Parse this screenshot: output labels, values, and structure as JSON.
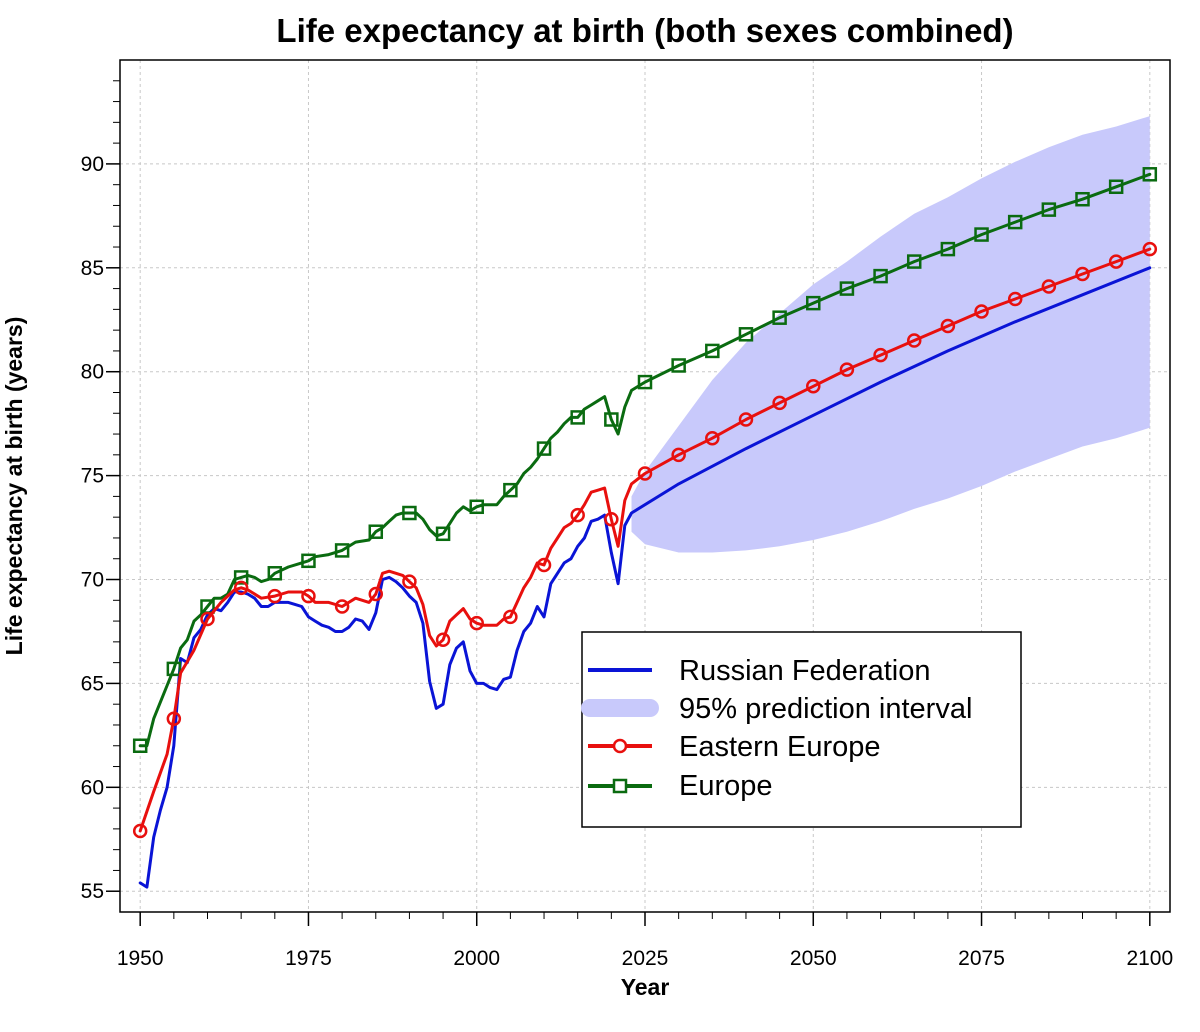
{
  "chart_data": {
    "type": "line",
    "title": "Life expectancy at birth (both sexes combined)",
    "xlabel": "Year",
    "ylabel": "Life expectancy at birth (years)",
    "xlim": [
      1947,
      2103
    ],
    "ylim": [
      54,
      95
    ],
    "x_ticks": [
      1950,
      1975,
      2000,
      2025,
      2050,
      2075,
      2100
    ],
    "y_ticks": [
      55,
      60,
      65,
      70,
      75,
      80,
      85,
      90
    ],
    "x_tick_labels": [
      "1950",
      "1975",
      "2000",
      "2025",
      "2050",
      "2075",
      "2100"
    ],
    "y_tick_labels": [
      "55",
      "60",
      "65",
      "70",
      "75",
      "80",
      "85",
      "90"
    ],
    "grid": true,
    "legend_position": "bottom-right",
    "legend": {
      "russia": "Russian Federation",
      "interval": "95% prediction interval",
      "eastern": "Eastern Europe",
      "europe": "Europe"
    },
    "colors": {
      "russia": "#0a14d6",
      "interval": "#c8c9fb",
      "eastern": "#e8100e",
      "europe": "#0a6b10"
    },
    "series": [
      {
        "key": "russia",
        "name": "Russian Federation",
        "marker": "none",
        "x": [
          1950,
          1951,
          1952,
          1953,
          1954,
          1955,
          1956,
          1957,
          1958,
          1959,
          1960,
          1961,
          1962,
          1963,
          1964,
          1965,
          1966,
          1967,
          1968,
          1969,
          1970,
          1971,
          1972,
          1973,
          1974,
          1975,
          1976,
          1977,
          1978,
          1979,
          1980,
          1981,
          1982,
          1983,
          1984,
          1985,
          1986,
          1987,
          1988,
          1989,
          1990,
          1991,
          1992,
          1993,
          1994,
          1995,
          1996,
          1997,
          1998,
          1999,
          2000,
          2001,
          2002,
          2003,
          2004,
          2005,
          2006,
          2007,
          2008,
          2009,
          2010,
          2011,
          2012,
          2013,
          2014,
          2015,
          2016,
          2017,
          2018,
          2019,
          2020,
          2021,
          2022,
          2023,
          2030,
          2040,
          2050,
          2060,
          2070,
          2080,
          2090,
          2100
        ],
        "y": [
          55.4,
          55.2,
          57.6,
          58.9,
          60.0,
          62.0,
          66.2,
          66.0,
          67.2,
          67.6,
          68.3,
          68.6,
          68.5,
          68.9,
          69.4,
          69.4,
          69.3,
          69.1,
          68.7,
          68.7,
          68.9,
          68.9,
          68.9,
          68.8,
          68.7,
          68.2,
          68.0,
          67.8,
          67.7,
          67.5,
          67.5,
          67.7,
          68.1,
          68.0,
          67.6,
          68.4,
          70.0,
          70.1,
          69.9,
          69.6,
          69.2,
          68.9,
          67.9,
          65.1,
          63.8,
          64.0,
          65.9,
          66.7,
          67.0,
          65.6,
          65.0,
          65.0,
          64.8,
          64.7,
          65.2,
          65.3,
          66.6,
          67.5,
          67.9,
          68.7,
          68.2,
          69.8,
          70.3,
          70.8,
          71.0,
          71.6,
          72.0,
          72.8,
          72.9,
          73.1,
          71.3,
          69.8,
          72.6,
          73.2,
          74.6,
          76.3,
          77.9,
          79.5,
          81.0,
          82.4,
          83.7,
          85.0
        ]
      },
      {
        "key": "eastern",
        "name": "Eastern Europe",
        "marker": "circle",
        "x": [
          1950,
          1952,
          1954,
          1955,
          1956,
          1958,
          1960,
          1962,
          1964,
          1965,
          1966,
          1968,
          1970,
          1972,
          1974,
          1975,
          1976,
          1978,
          1980,
          1982,
          1984,
          1985,
          1986,
          1987,
          1988,
          1989,
          1990,
          1991,
          1992,
          1993,
          1994,
          1995,
          1996,
          1997,
          1998,
          1999,
          2000,
          2001,
          2002,
          2003,
          2004,
          2005,
          2006,
          2007,
          2008,
          2009,
          2010,
          2011,
          2012,
          2013,
          2014,
          2015,
          2016,
          2017,
          2018,
          2019,
          2020,
          2021,
          2022,
          2023,
          2025,
          2030,
          2035,
          2040,
          2045,
          2050,
          2055,
          2060,
          2065,
          2070,
          2075,
          2080,
          2085,
          2090,
          2095,
          2100
        ],
        "y": [
          57.9,
          59.8,
          61.6,
          63.3,
          65.5,
          66.6,
          68.1,
          68.9,
          69.5,
          69.6,
          69.5,
          69.1,
          69.2,
          69.4,
          69.4,
          69.2,
          68.9,
          68.9,
          68.7,
          69.1,
          68.9,
          69.3,
          70.3,
          70.4,
          70.3,
          70.2,
          69.9,
          69.6,
          68.8,
          67.3,
          66.8,
          67.1,
          68.0,
          68.3,
          68.6,
          68.1,
          67.9,
          67.8,
          67.8,
          67.8,
          68.1,
          68.2,
          68.9,
          69.6,
          70.1,
          70.8,
          70.7,
          71.5,
          72.0,
          72.5,
          72.7,
          73.1,
          73.6,
          74.2,
          74.3,
          74.4,
          72.9,
          71.6,
          73.8,
          74.6,
          75.1,
          76.0,
          76.8,
          77.7,
          78.5,
          79.3,
          80.1,
          80.8,
          81.5,
          82.2,
          82.9,
          83.5,
          84.1,
          84.7,
          85.3,
          85.9
        ]
      },
      {
        "key": "europe",
        "name": "Europe",
        "marker": "square",
        "x": [
          1950,
          1951,
          1952,
          1953,
          1954,
          1955,
          1956,
          1957,
          1958,
          1959,
          1960,
          1961,
          1962,
          1963,
          1964,
          1965,
          1966,
          1967,
          1968,
          1969,
          1970,
          1972,
          1974,
          1975,
          1976,
          1978,
          1980,
          1982,
          1984,
          1985,
          1986,
          1987,
          1988,
          1989,
          1990,
          1991,
          1992,
          1993,
          1994,
          1995,
          1996,
          1997,
          1998,
          1999,
          2000,
          2001,
          2002,
          2003,
          2004,
          2005,
          2006,
          2007,
          2008,
          2009,
          2010,
          2011,
          2012,
          2013,
          2014,
          2015,
          2016,
          2017,
          2018,
          2019,
          2020,
          2021,
          2022,
          2023,
          2025,
          2030,
          2035,
          2040,
          2045,
          2050,
          2055,
          2060,
          2065,
          2070,
          2075,
          2080,
          2085,
          2090,
          2095,
          2100
        ],
        "y": [
          62.0,
          62.0,
          63.3,
          64.1,
          64.9,
          65.7,
          66.7,
          67.1,
          68.0,
          68.3,
          68.7,
          69.1,
          69.1,
          69.3,
          70.0,
          70.1,
          70.2,
          70.1,
          69.9,
          70.0,
          70.3,
          70.6,
          70.8,
          70.9,
          71.1,
          71.2,
          71.4,
          71.8,
          71.9,
          72.3,
          72.5,
          72.8,
          73.1,
          73.2,
          73.2,
          73.2,
          72.9,
          72.4,
          72.1,
          72.2,
          72.7,
          73.2,
          73.5,
          73.3,
          73.5,
          73.6,
          73.6,
          73.6,
          74.0,
          74.3,
          74.6,
          75.1,
          75.4,
          75.8,
          76.3,
          76.8,
          77.1,
          77.5,
          77.8,
          77.8,
          78.2,
          78.4,
          78.6,
          78.8,
          77.7,
          77.0,
          78.3,
          79.1,
          79.5,
          80.3,
          81.0,
          81.8,
          82.6,
          83.3,
          84.0,
          84.6,
          85.3,
          85.9,
          86.6,
          87.2,
          87.8,
          88.3,
          88.9,
          89.5
        ]
      }
    ],
    "prediction_interval": {
      "name": "95% prediction interval",
      "x": [
        2023,
        2025,
        2030,
        2035,
        2040,
        2045,
        2050,
        2055,
        2060,
        2065,
        2070,
        2075,
        2080,
        2085,
        2090,
        2095,
        2100
      ],
      "lower": [
        72.3,
        71.7,
        71.3,
        71.3,
        71.4,
        71.6,
        71.9,
        72.3,
        72.8,
        73.4,
        73.9,
        74.5,
        75.2,
        75.8,
        76.4,
        76.8,
        77.3
      ],
      "upper": [
        74.0,
        75.2,
        77.4,
        79.6,
        81.4,
        82.8,
        84.2,
        85.3,
        86.5,
        87.6,
        88.4,
        89.3,
        90.1,
        90.8,
        91.4,
        91.8,
        92.3
      ]
    }
  }
}
